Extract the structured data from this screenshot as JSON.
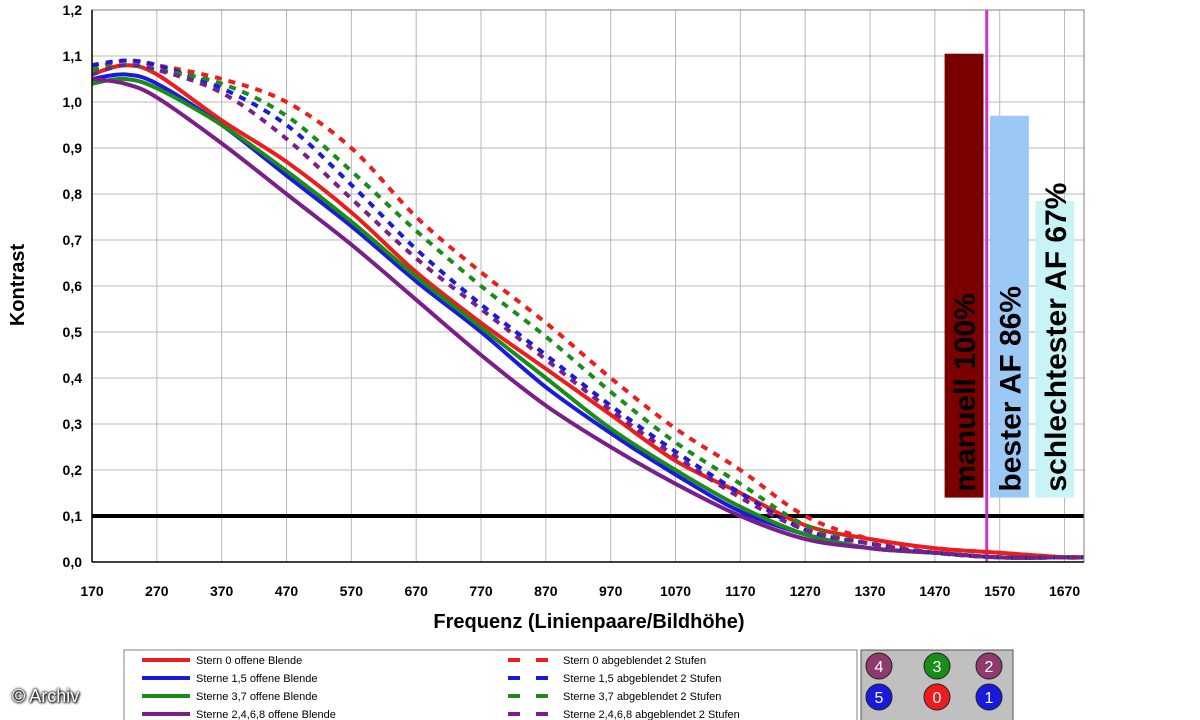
{
  "chart_data": {
    "type": "line",
    "title": "",
    "xlabel": "Frequenz (Linienpaare/Bildhöhe)",
    "ylabel": "Kontrast",
    "xlim": [
      170,
      1700
    ],
    "ylim": [
      0,
      1.2
    ],
    "x_ticks": [
      170,
      270,
      370,
      470,
      570,
      670,
      770,
      870,
      970,
      1070,
      1170,
      1270,
      1370,
      1470,
      1570,
      1670
    ],
    "y_ticks": [
      "0,0",
      "0,1",
      "0,2",
      "0,3",
      "0,4",
      "0,5",
      "0,6",
      "0,7",
      "0,8",
      "0,9",
      "1,0",
      "1,1",
      "1,2"
    ],
    "grid": true,
    "threshold_line": {
      "y": 0.1,
      "color": "#000000"
    },
    "vertical_marker": {
      "x": 1550,
      "color": "#cc33cc"
    },
    "series": [
      {
        "name": "Stern 0 offene Blende",
        "color": "#ee1c1c",
        "dashed": false,
        "points": [
          [
            170,
            1.06
          ],
          [
            220,
            1.08
          ],
          [
            270,
            1.06
          ],
          [
            370,
            0.96
          ],
          [
            470,
            0.87
          ],
          [
            570,
            0.76
          ],
          [
            670,
            0.63
          ],
          [
            770,
            0.52
          ],
          [
            870,
            0.42
          ],
          [
            970,
            0.32
          ],
          [
            1070,
            0.22
          ],
          [
            1170,
            0.15
          ],
          [
            1270,
            0.08
          ],
          [
            1370,
            0.05
          ],
          [
            1470,
            0.03
          ],
          [
            1570,
            0.02
          ],
          [
            1670,
            0.01
          ],
          [
            1700,
            0.01
          ]
        ]
      },
      {
        "name": "Sterne 1,5 offene Blende",
        "color": "#1a1adc",
        "dashed": false,
        "points": [
          [
            170,
            1.05
          ],
          [
            220,
            1.06
          ],
          [
            270,
            1.04
          ],
          [
            370,
            0.95
          ],
          [
            470,
            0.84
          ],
          [
            570,
            0.73
          ],
          [
            670,
            0.61
          ],
          [
            770,
            0.5
          ],
          [
            870,
            0.38
          ],
          [
            970,
            0.28
          ],
          [
            1070,
            0.19
          ],
          [
            1170,
            0.11
          ],
          [
            1270,
            0.06
          ],
          [
            1370,
            0.03
          ],
          [
            1470,
            0.02
          ],
          [
            1570,
            0.01
          ],
          [
            1670,
            0.01
          ],
          [
            1700,
            0.01
          ]
        ]
      },
      {
        "name": "Sterne 3,7 offene Blende",
        "color": "#1a8c1a",
        "dashed": false,
        "points": [
          [
            170,
            1.04
          ],
          [
            220,
            1.05
          ],
          [
            270,
            1.03
          ],
          [
            370,
            0.95
          ],
          [
            470,
            0.85
          ],
          [
            570,
            0.74
          ],
          [
            670,
            0.62
          ],
          [
            770,
            0.51
          ],
          [
            870,
            0.4
          ],
          [
            970,
            0.29
          ],
          [
            1070,
            0.2
          ],
          [
            1170,
            0.12
          ],
          [
            1270,
            0.06
          ],
          [
            1370,
            0.03
          ],
          [
            1470,
            0.02
          ],
          [
            1570,
            0.01
          ],
          [
            1670,
            0.01
          ],
          [
            1700,
            0.01
          ]
        ]
      },
      {
        "name": "Sterne 2,4,6,8 offene Blende",
        "color": "#7a1f8a",
        "dashed": false,
        "points": [
          [
            170,
            1.05
          ],
          [
            220,
            1.04
          ],
          [
            270,
            1.01
          ],
          [
            370,
            0.91
          ],
          [
            470,
            0.8
          ],
          [
            570,
            0.69
          ],
          [
            670,
            0.57
          ],
          [
            770,
            0.45
          ],
          [
            870,
            0.34
          ],
          [
            970,
            0.25
          ],
          [
            1070,
            0.17
          ],
          [
            1170,
            0.1
          ],
          [
            1270,
            0.05
          ],
          [
            1370,
            0.03
          ],
          [
            1470,
            0.02
          ],
          [
            1570,
            0.01
          ],
          [
            1670,
            0.01
          ],
          [
            1700,
            0.01
          ]
        ]
      },
      {
        "name": "Stern 0 abgeblendet 2 Stufen",
        "color": "#ee1c1c",
        "dashed": true,
        "points": [
          [
            170,
            1.07
          ],
          [
            220,
            1.09
          ],
          [
            270,
            1.08
          ],
          [
            370,
            1.05
          ],
          [
            470,
            1.0
          ],
          [
            570,
            0.9
          ],
          [
            670,
            0.75
          ],
          [
            770,
            0.63
          ],
          [
            870,
            0.52
          ],
          [
            970,
            0.4
          ],
          [
            1070,
            0.29
          ],
          [
            1170,
            0.2
          ],
          [
            1270,
            0.1
          ],
          [
            1370,
            0.05
          ],
          [
            1470,
            0.03
          ],
          [
            1570,
            0.02
          ],
          [
            1670,
            0.01
          ],
          [
            1700,
            0.01
          ]
        ]
      },
      {
        "name": "Sterne 1,5 abgeblendet 2 Stufen",
        "color": "#1a1adc",
        "dashed": true,
        "points": [
          [
            170,
            1.08
          ],
          [
            220,
            1.09
          ],
          [
            270,
            1.08
          ],
          [
            370,
            1.03
          ],
          [
            470,
            0.95
          ],
          [
            570,
            0.82
          ],
          [
            670,
            0.68
          ],
          [
            770,
            0.56
          ],
          [
            870,
            0.45
          ],
          [
            970,
            0.34
          ],
          [
            1070,
            0.24
          ],
          [
            1170,
            0.15
          ],
          [
            1270,
            0.07
          ],
          [
            1370,
            0.04
          ],
          [
            1470,
            0.02
          ],
          [
            1570,
            0.01
          ],
          [
            1670,
            0.01
          ],
          [
            1700,
            0.01
          ]
        ]
      },
      {
        "name": "Sterne 3,7 abgeblendet 2 Stufen",
        "color": "#1a8c1a",
        "dashed": true,
        "points": [
          [
            170,
            1.07
          ],
          [
            220,
            1.08
          ],
          [
            270,
            1.07
          ],
          [
            370,
            1.04
          ],
          [
            470,
            0.97
          ],
          [
            570,
            0.85
          ],
          [
            670,
            0.72
          ],
          [
            770,
            0.6
          ],
          [
            870,
            0.49
          ],
          [
            970,
            0.37
          ],
          [
            1070,
            0.26
          ],
          [
            1170,
            0.17
          ],
          [
            1270,
            0.08
          ],
          [
            1370,
            0.04
          ],
          [
            1470,
            0.02
          ],
          [
            1570,
            0.01
          ],
          [
            1670,
            0.01
          ],
          [
            1700,
            0.01
          ]
        ]
      },
      {
        "name": "Sterne 2,4,6,8 abgeblendet 2 Stufen",
        "color": "#7a1f8a",
        "dashed": true,
        "points": [
          [
            170,
            1.06
          ],
          [
            220,
            1.08
          ],
          [
            270,
            1.07
          ],
          [
            370,
            1.02
          ],
          [
            470,
            0.92
          ],
          [
            570,
            0.79
          ],
          [
            670,
            0.66
          ],
          [
            770,
            0.55
          ],
          [
            870,
            0.44
          ],
          [
            970,
            0.33
          ],
          [
            1070,
            0.23
          ],
          [
            1170,
            0.14
          ],
          [
            1270,
            0.07
          ],
          [
            1370,
            0.04
          ],
          [
            1470,
            0.02
          ],
          [
            1570,
            0.01
          ],
          [
            1670,
            0.01
          ],
          [
            1700,
            0.01
          ]
        ]
      }
    ],
    "bars": [
      {
        "label": "manuell 100%",
        "x_from": 1485,
        "x_to": 1545,
        "y_top": 1.105,
        "y_bottom": 0.14,
        "color": "#7a0000"
      },
      {
        "label": "bester AF 86%",
        "x_from": 1555,
        "x_to": 1615,
        "y_top": 0.97,
        "y_bottom": 0.14,
        "color": "#9cc8f5"
      },
      {
        "label": "schlechtester AF 67%",
        "x_from": 1625,
        "x_to": 1685,
        "y_top": 0.785,
        "y_bottom": 0.14,
        "color": "#c8f4f6"
      }
    ],
    "sensor_grid": [
      {
        "label": "4",
        "color": "#8e3a6c"
      },
      {
        "label": "3",
        "color": "#1a8c1a"
      },
      {
        "label": "2",
        "color": "#8e3a6c"
      },
      {
        "label": "5",
        "color": "#1a1adc"
      },
      {
        "label": "0",
        "color": "#ee1c1c"
      },
      {
        "label": "1",
        "color": "#1a1adc"
      }
    ]
  },
  "credit": "© Archiv"
}
